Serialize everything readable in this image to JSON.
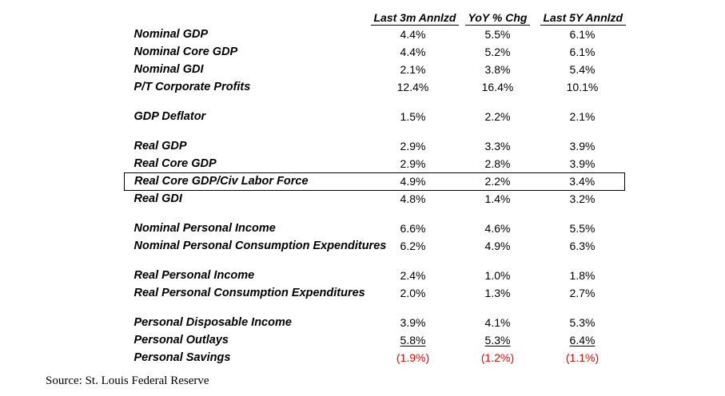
{
  "colors": {
    "text": "#000000",
    "negative": "#ff0000",
    "border": "#000000"
  },
  "chart_data": {
    "type": "table",
    "columns": [
      "Last 3m Annlzd",
      "YoY % Chg",
      "Last 5Y Annlzd"
    ],
    "rows": [
      {
        "label": "Nominal GDP",
        "values": [
          "4.4%",
          "5.5%",
          "6.1%"
        ]
      },
      {
        "label": "Nominal Core GDP",
        "values": [
          "4.4%",
          "5.2%",
          "6.1%"
        ]
      },
      {
        "label": "Nominal GDI",
        "values": [
          "2.1%",
          "3.8%",
          "5.4%"
        ]
      },
      {
        "label": "P/T Corporate Profits",
        "values": [
          "12.4%",
          "16.4%",
          "10.1%"
        ]
      },
      {
        "spacer": true
      },
      {
        "label": "GDP Deflator",
        "values": [
          "1.5%",
          "2.2%",
          "2.1%"
        ]
      },
      {
        "spacer": true
      },
      {
        "label": "Real GDP",
        "values": [
          "2.9%",
          "3.3%",
          "3.9%"
        ]
      },
      {
        "label": "Real Core GDP",
        "values": [
          "2.9%",
          "2.8%",
          "3.9%"
        ]
      },
      {
        "label": "Real Core GDP/Civ Labor Force",
        "values": [
          "4.9%",
          "2.2%",
          "3.4%"
        ],
        "boxed": true
      },
      {
        "label": "Real GDI",
        "values": [
          "4.8%",
          "1.4%",
          "3.2%"
        ]
      },
      {
        "spacer": true
      },
      {
        "label": "Nominal Personal Income",
        "values": [
          "6.6%",
          "4.6%",
          "5.5%"
        ]
      },
      {
        "label": "Nominal Personal Consumption Expenditures",
        "values": [
          "6.2%",
          "4.9%",
          "6.3%"
        ]
      },
      {
        "spacer": true
      },
      {
        "label": "Real Personal Income",
        "values": [
          "2.4%",
          "1.0%",
          "1.8%"
        ]
      },
      {
        "label": "Real Personal Consumption Expenditures",
        "values": [
          "2.0%",
          "1.3%",
          "2.7%"
        ]
      },
      {
        "spacer": true
      },
      {
        "label": "Personal Disposable Income",
        "values": [
          "3.9%",
          "4.1%",
          "5.3%"
        ]
      },
      {
        "label": "Personal Outlays",
        "values": [
          "5.8%",
          "5.3%",
          "6.4%"
        ],
        "underline": true
      },
      {
        "label": "Personal Savings",
        "values": [
          "(1.9%)",
          "(1.2%)",
          "(1.1%)"
        ],
        "negative": true
      }
    ]
  },
  "footer": {
    "source": "Source: St. Louis Federal Reserve"
  }
}
